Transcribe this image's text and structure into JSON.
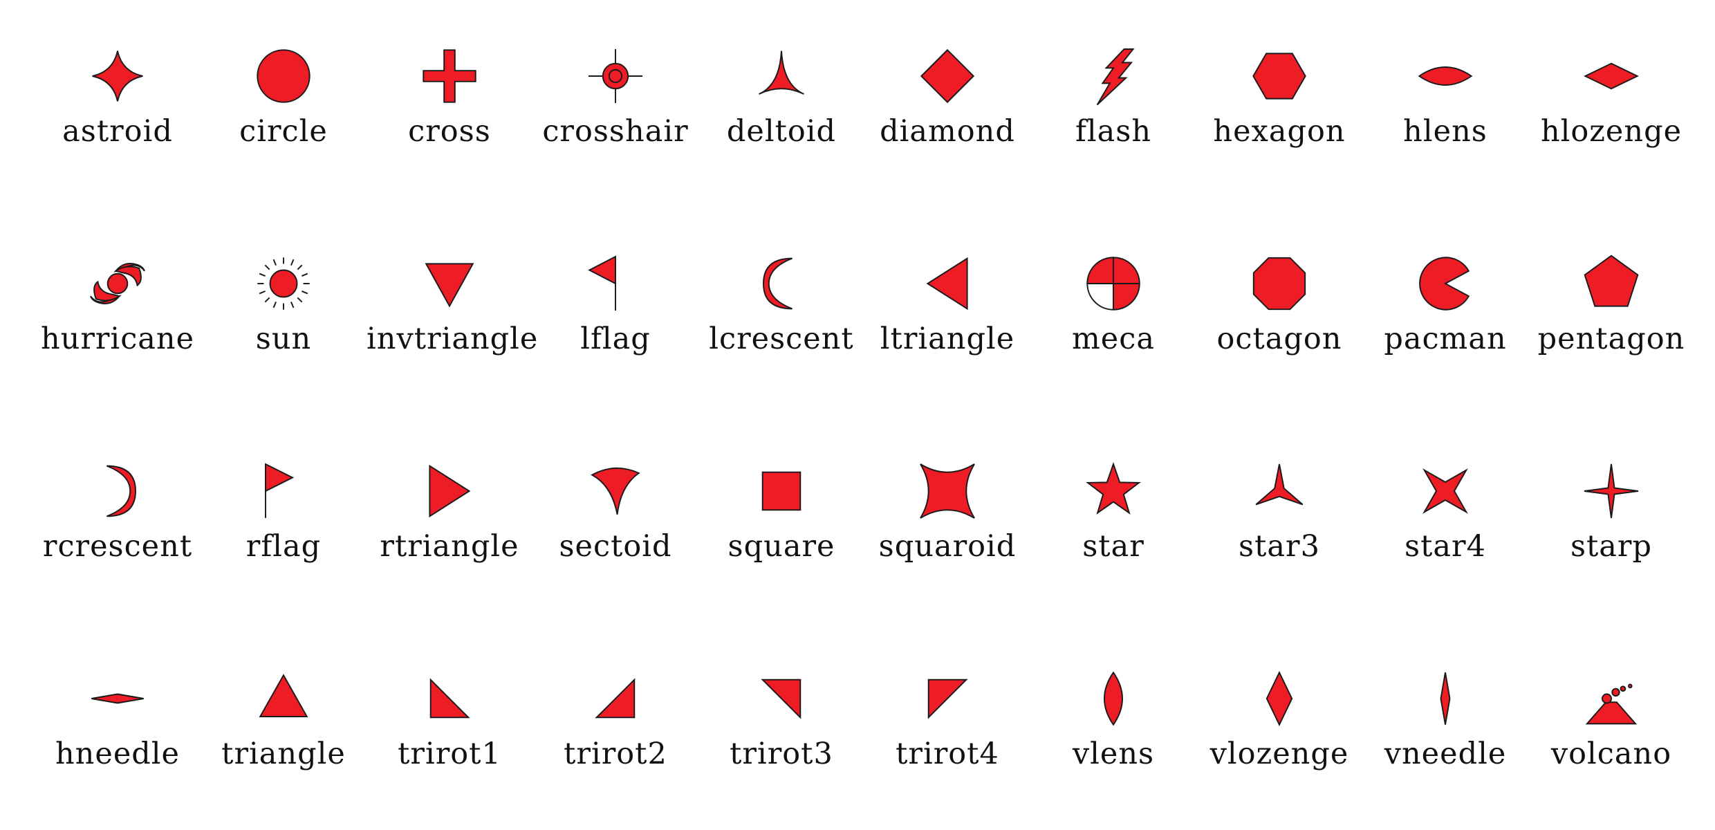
{
  "fill_color": "#EE1C25",
  "stroke_color": "#1a1a1a",
  "rows": [
    [
      {
        "label": "astroid",
        "shape": "astroid"
      },
      {
        "label": "circle",
        "shape": "circle"
      },
      {
        "label": "cross",
        "shape": "cross"
      },
      {
        "label": "crosshair",
        "shape": "crosshair"
      },
      {
        "label": "deltoid",
        "shape": "deltoid"
      },
      {
        "label": "diamond",
        "shape": "diamond"
      },
      {
        "label": "flash",
        "shape": "flash"
      },
      {
        "label": "hexagon",
        "shape": "hexagon"
      },
      {
        "label": "hlens",
        "shape": "hlens"
      },
      {
        "label": "hlozenge",
        "shape": "hlozenge"
      }
    ],
    [
      {
        "label": "hurricane",
        "shape": "hurricane"
      },
      {
        "label": "sun",
        "shape": "sun"
      },
      {
        "label": "invtriangle",
        "shape": "invtriangle"
      },
      {
        "label": "lflag",
        "shape": "lflag"
      },
      {
        "label": "lcrescent",
        "shape": "lcrescent"
      },
      {
        "label": "ltriangle",
        "shape": "ltriangle"
      },
      {
        "label": "meca",
        "shape": "meca"
      },
      {
        "label": "octagon",
        "shape": "octagon"
      },
      {
        "label": "pacman",
        "shape": "pacman"
      },
      {
        "label": "pentagon",
        "shape": "pentagon"
      }
    ],
    [
      {
        "label": "rcrescent",
        "shape": "rcrescent"
      },
      {
        "label": "rflag",
        "shape": "rflag"
      },
      {
        "label": "rtriangle",
        "shape": "rtriangle"
      },
      {
        "label": "sectoid",
        "shape": "sectoid"
      },
      {
        "label": "square",
        "shape": "square"
      },
      {
        "label": "squaroid",
        "shape": "squaroid"
      },
      {
        "label": "star",
        "shape": "star"
      },
      {
        "label": "star3",
        "shape": "star3"
      },
      {
        "label": "star4",
        "shape": "star4"
      },
      {
        "label": "starp",
        "shape": "starp"
      }
    ],
    [
      {
        "label": "hneedle",
        "shape": "hneedle"
      },
      {
        "label": "triangle",
        "shape": "triangle"
      },
      {
        "label": "trirot1",
        "shape": "trirot1"
      },
      {
        "label": "trirot2",
        "shape": "trirot2"
      },
      {
        "label": "trirot3",
        "shape": "trirot3"
      },
      {
        "label": "trirot4",
        "shape": "trirot4"
      },
      {
        "label": "vlens",
        "shape": "vlens"
      },
      {
        "label": "vlozenge",
        "shape": "vlozenge"
      },
      {
        "label": "vneedle",
        "shape": "vneedle"
      },
      {
        "label": "volcano",
        "shape": "volcano"
      }
    ]
  ]
}
